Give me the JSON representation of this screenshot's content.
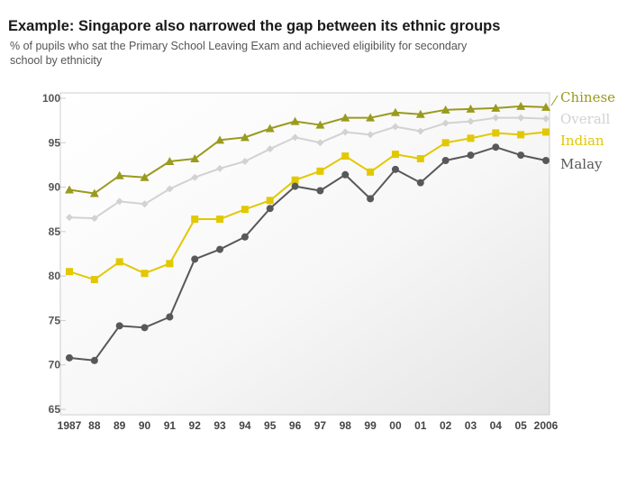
{
  "header": {
    "title": "Example: Singapore also narrowed the gap between its ethnic groups",
    "subtitle": "% of pupils who sat the Primary School Leaving Exam and achieved eligibility for secondary school by ethnicity"
  },
  "chart_data": {
    "type": "line",
    "title": "Example: Singapore also narrowed the gap between its ethnic groups",
    "subtitle": "% of pupils who sat the Primary School Leaving Exam and achieved eligibility for secondary school by ethnicity",
    "xlabel": "",
    "ylabel": "",
    "x": [
      "1987",
      "88",
      "89",
      "90",
      "91",
      "92",
      "93",
      "94",
      "95",
      "96",
      "97",
      "98",
      "99",
      "00",
      "01",
      "02",
      "03",
      "04",
      "05",
      "2006"
    ],
    "ylim": [
      65,
      100
    ],
    "yticks": [
      "100",
      "95",
      "90",
      "85",
      "80",
      "75",
      "70",
      "65"
    ],
    "grid": false,
    "legend_position": "right",
    "series": [
      {
        "name": "Chinese",
        "color": "#9a9a1e",
        "marker": "triangle",
        "values": [
          89.7,
          89.3,
          91.3,
          91.1,
          92.9,
          93.2,
          95.3,
          95.6,
          96.6,
          97.4,
          97.0,
          97.8,
          97.8,
          98.4,
          98.2,
          98.7,
          98.8,
          98.9,
          99.1,
          99.0
        ]
      },
      {
        "name": "Overall",
        "color": "#d2d2d2",
        "marker": "diamond",
        "values": [
          86.6,
          86.5,
          88.4,
          88.1,
          89.8,
          91.1,
          92.1,
          92.9,
          94.3,
          95.6,
          95.0,
          96.2,
          95.9,
          96.8,
          96.3,
          97.2,
          97.4,
          97.8,
          97.8,
          97.7
        ]
      },
      {
        "name": "Indian",
        "color": "#e2c800",
        "marker": "square",
        "values": [
          80.5,
          79.6,
          81.6,
          80.3,
          81.4,
          86.4,
          86.4,
          87.5,
          88.5,
          90.8,
          91.8,
          93.5,
          91.7,
          93.7,
          93.2,
          95.0,
          95.5,
          96.1,
          95.9,
          96.2
        ]
      },
      {
        "name": "Malay",
        "color": "#58585a",
        "marker": "circle",
        "values": [
          70.8,
          70.5,
          74.4,
          74.2,
          75.4,
          81.9,
          83.0,
          84.4,
          87.6,
          90.1,
          89.6,
          91.4,
          88.7,
          92.0,
          90.5,
          93.0,
          93.6,
          94.5,
          93.6,
          93.0
        ]
      }
    ]
  }
}
